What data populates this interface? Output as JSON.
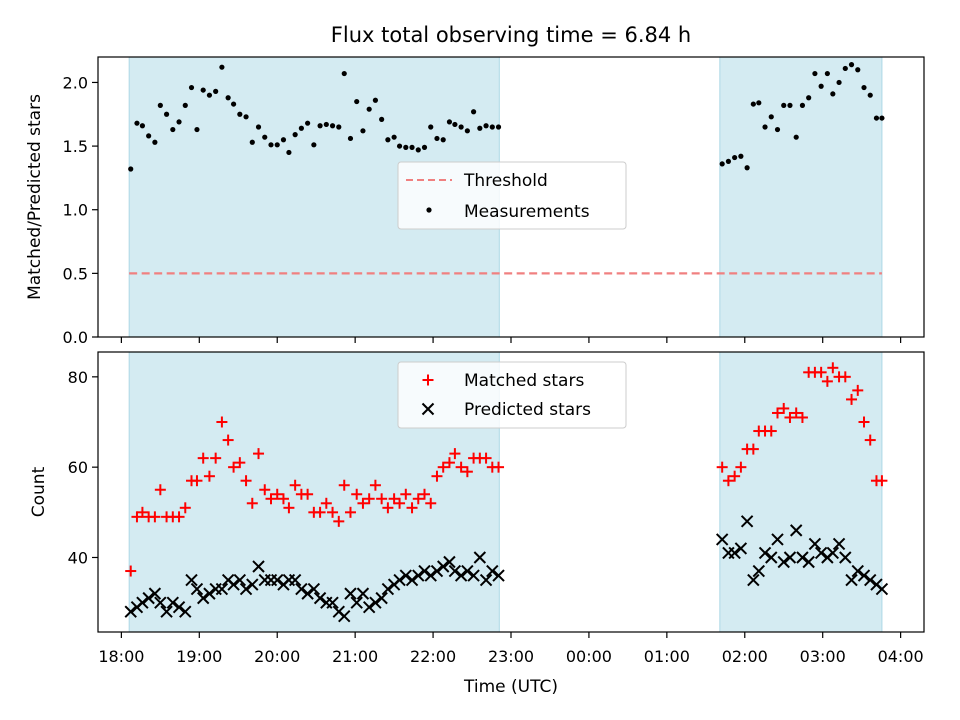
{
  "chart_data": {
    "type": "scatter",
    "title": "Flux total observing time = 6.84 h",
    "xlabel": "Time (UTC)",
    "x_ticks": [
      "18:00",
      "19:00",
      "20:00",
      "21:00",
      "22:00",
      "23:00",
      "00:00",
      "01:00",
      "02:00",
      "03:00",
      "04:00"
    ],
    "x_range_hours": [
      17.7,
      28.3
    ],
    "shaded_spans_hours": [
      [
        18.1,
        22.85
      ],
      [
        25.68,
        27.76
      ]
    ],
    "shade_color": "#add8e6",
    "panels": [
      {
        "name": "ratio",
        "ylabel": "Matched/Predicted stars",
        "ylim": [
          0,
          2.2
        ],
        "y_ticks": [
          0.0,
          0.5,
          1.0,
          1.5,
          2.0
        ],
        "y_tick_labels": [
          "0.0",
          "0.5",
          "1.0",
          "1.5",
          "2.0"
        ],
        "legend_position": "center",
        "legend": [
          "Threshold",
          "Measurements"
        ],
        "threshold": {
          "label": "Threshold",
          "value": 0.5,
          "x_range": [
            18.1,
            27.76
          ],
          "color": "#f08080"
        },
        "series": [
          {
            "label": "Measurements",
            "color": "#000000",
            "marker": "dot",
            "x": [
              18.12,
              18.2,
              18.27,
              18.35,
              18.43,
              18.5,
              18.58,
              18.66,
              18.74,
              18.82,
              18.9,
              18.97,
              19.05,
              19.13,
              19.21,
              19.29,
              19.37,
              19.44,
              19.52,
              19.6,
              19.68,
              19.76,
              19.84,
              19.92,
              20.0,
              20.08,
              20.15,
              20.23,
              20.31,
              20.39,
              20.47,
              20.55,
              20.63,
              20.71,
              20.79,
              20.86,
              20.94,
              21.02,
              21.1,
              21.18,
              21.26,
              21.34,
              21.42,
              21.5,
              21.57,
              21.65,
              21.73,
              21.81,
              21.89,
              21.97,
              22.05,
              22.13,
              22.21,
              22.28,
              22.36,
              22.44,
              22.52,
              22.6,
              22.68,
              22.76,
              22.84,
              25.71,
              25.79,
              25.87,
              25.95,
              26.03,
              26.11,
              26.18,
              26.26,
              26.34,
              26.42,
              26.5,
              26.58,
              26.66,
              26.74,
              26.82,
              26.9,
              26.98,
              27.06,
              27.13,
              27.21,
              27.29,
              27.37,
              27.45,
              27.53,
              27.61,
              27.69,
              27.76
            ],
            "y": [
              1.32,
              1.68,
              1.66,
              1.58,
              1.53,
              1.82,
              1.75,
              1.63,
              1.69,
              1.82,
              1.96,
              1.63,
              1.94,
              1.9,
              1.93,
              2.12,
              1.88,
              1.83,
              1.75,
              1.73,
              1.53,
              1.65,
              1.57,
              1.51,
              1.51,
              1.55,
              1.45,
              1.59,
              1.64,
              1.68,
              1.51,
              1.66,
              1.67,
              1.66,
              1.65,
              2.07,
              1.56,
              1.85,
              1.62,
              1.79,
              1.86,
              1.71,
              1.55,
              1.57,
              1.5,
              1.49,
              1.49,
              1.47,
              1.49,
              1.65,
              1.56,
              1.55,
              1.69,
              1.67,
              1.65,
              1.62,
              1.77,
              1.64,
              1.66,
              1.65,
              1.65,
              1.36,
              1.38,
              1.41,
              1.42,
              1.33,
              1.83,
              1.84,
              1.65,
              1.73,
              1.63,
              1.82,
              1.82,
              1.57,
              1.82,
              1.88,
              2.07,
              1.97,
              2.07,
              1.91,
              2.0,
              2.11,
              2.14,
              2.1,
              1.96,
              1.9,
              1.72,
              1.72
            ]
          }
        ]
      },
      {
        "name": "count",
        "ylabel": "Count",
        "ylim": [
          23.5,
          85.5
        ],
        "y_ticks": [
          40,
          60,
          80
        ],
        "y_tick_labels": [
          "40",
          "60",
          "80"
        ],
        "legend_position": "upper center",
        "legend": [
          "Matched stars",
          "Predicted stars"
        ],
        "series": [
          {
            "label": "Matched stars",
            "color": "#ff0000",
            "marker": "plus",
            "x": [
              18.12,
              18.2,
              18.27,
              18.35,
              18.43,
              18.5,
              18.58,
              18.66,
              18.74,
              18.82,
              18.9,
              18.97,
              19.05,
              19.13,
              19.21,
              19.29,
              19.37,
              19.44,
              19.52,
              19.6,
              19.68,
              19.76,
              19.84,
              19.92,
              20.0,
              20.08,
              20.15,
              20.23,
              20.31,
              20.39,
              20.47,
              20.55,
              20.63,
              20.71,
              20.79,
              20.86,
              20.94,
              21.02,
              21.1,
              21.18,
              21.26,
              21.34,
              21.42,
              21.5,
              21.57,
              21.65,
              21.73,
              21.81,
              21.89,
              21.97,
              22.05,
              22.13,
              22.21,
              22.28,
              22.36,
              22.44,
              22.52,
              22.6,
              22.68,
              22.76,
              22.84,
              25.71,
              25.79,
              25.87,
              25.95,
              26.03,
              26.11,
              26.18,
              26.26,
              26.34,
              26.42,
              26.5,
              26.58,
              26.66,
              26.74,
              26.82,
              26.9,
              26.98,
              27.06,
              27.13,
              27.21,
              27.29,
              27.37,
              27.45,
              27.53,
              27.61,
              27.69,
              27.76
            ],
            "y": [
              37,
              49,
              50,
              49,
              49,
              55,
              49,
              49,
              49,
              51,
              57,
              57,
              62,
              58,
              62,
              70,
              66,
              60,
              61,
              57,
              52,
              63,
              55,
              53,
              54,
              53,
              51,
              56,
              54,
              54,
              50,
              50,
              52,
              50,
              48,
              56,
              50,
              54,
              52,
              53,
              56,
              53,
              51,
              53,
              52,
              54,
              51,
              53,
              54,
              52,
              58,
              60,
              61,
              63,
              60,
              59,
              62,
              62,
              62,
              60,
              60,
              60,
              57,
              58,
              60,
              64,
              64,
              68,
              68,
              68,
              72,
              73,
              71,
              72,
              71,
              81,
              81,
              81,
              79,
              82,
              80,
              80,
              75,
              77,
              70,
              66,
              57,
              57
            ]
          },
          {
            "label": "Predicted stars",
            "color": "#000000",
            "marker": "x",
            "x": [
              18.12,
              18.2,
              18.27,
              18.35,
              18.43,
              18.5,
              18.58,
              18.66,
              18.74,
              18.82,
              18.9,
              18.97,
              19.05,
              19.13,
              19.21,
              19.29,
              19.37,
              19.44,
              19.52,
              19.6,
              19.68,
              19.76,
              19.84,
              19.92,
              20.0,
              20.08,
              20.15,
              20.23,
              20.31,
              20.39,
              20.47,
              20.55,
              20.63,
              20.71,
              20.79,
              20.86,
              20.94,
              21.02,
              21.1,
              21.18,
              21.26,
              21.34,
              21.42,
              21.5,
              21.57,
              21.65,
              21.73,
              21.81,
              21.89,
              21.97,
              22.05,
              22.13,
              22.21,
              22.28,
              22.36,
              22.44,
              22.52,
              22.6,
              22.68,
              22.76,
              22.84,
              25.71,
              25.79,
              25.87,
              25.95,
              26.03,
              26.11,
              26.18,
              26.26,
              26.34,
              26.42,
              26.5,
              26.58,
              26.66,
              26.74,
              26.82,
              26.9,
              26.98,
              27.06,
              27.13,
              27.21,
              27.29,
              27.37,
              27.45,
              27.53,
              27.61,
              27.69,
              27.76
            ],
            "y": [
              28,
              29,
              30,
              31,
              32,
              30,
              28,
              30,
              29,
              28,
              35,
              33,
              31,
              32,
              33,
              33,
              35,
              34,
              35,
              33,
              34,
              38,
              35,
              35,
              35,
              34,
              35,
              35,
              33,
              32,
              33,
              31,
              30,
              30,
              28,
              27,
              32,
              30,
              32,
              29,
              30,
              31,
              33,
              34,
              35,
              36,
              35,
              36,
              37,
              36,
              37,
              38,
              39,
              37,
              36,
              37,
              36,
              40,
              35,
              37,
              36,
              44,
              41,
              41,
              42,
              48,
              35,
              37,
              41,
              40,
              44,
              39,
              40,
              46,
              40,
              39,
              43,
              41,
              40,
              41,
              43,
              40,
              35,
              37,
              36,
              35,
              34,
              33
            ]
          }
        ]
      }
    ]
  }
}
